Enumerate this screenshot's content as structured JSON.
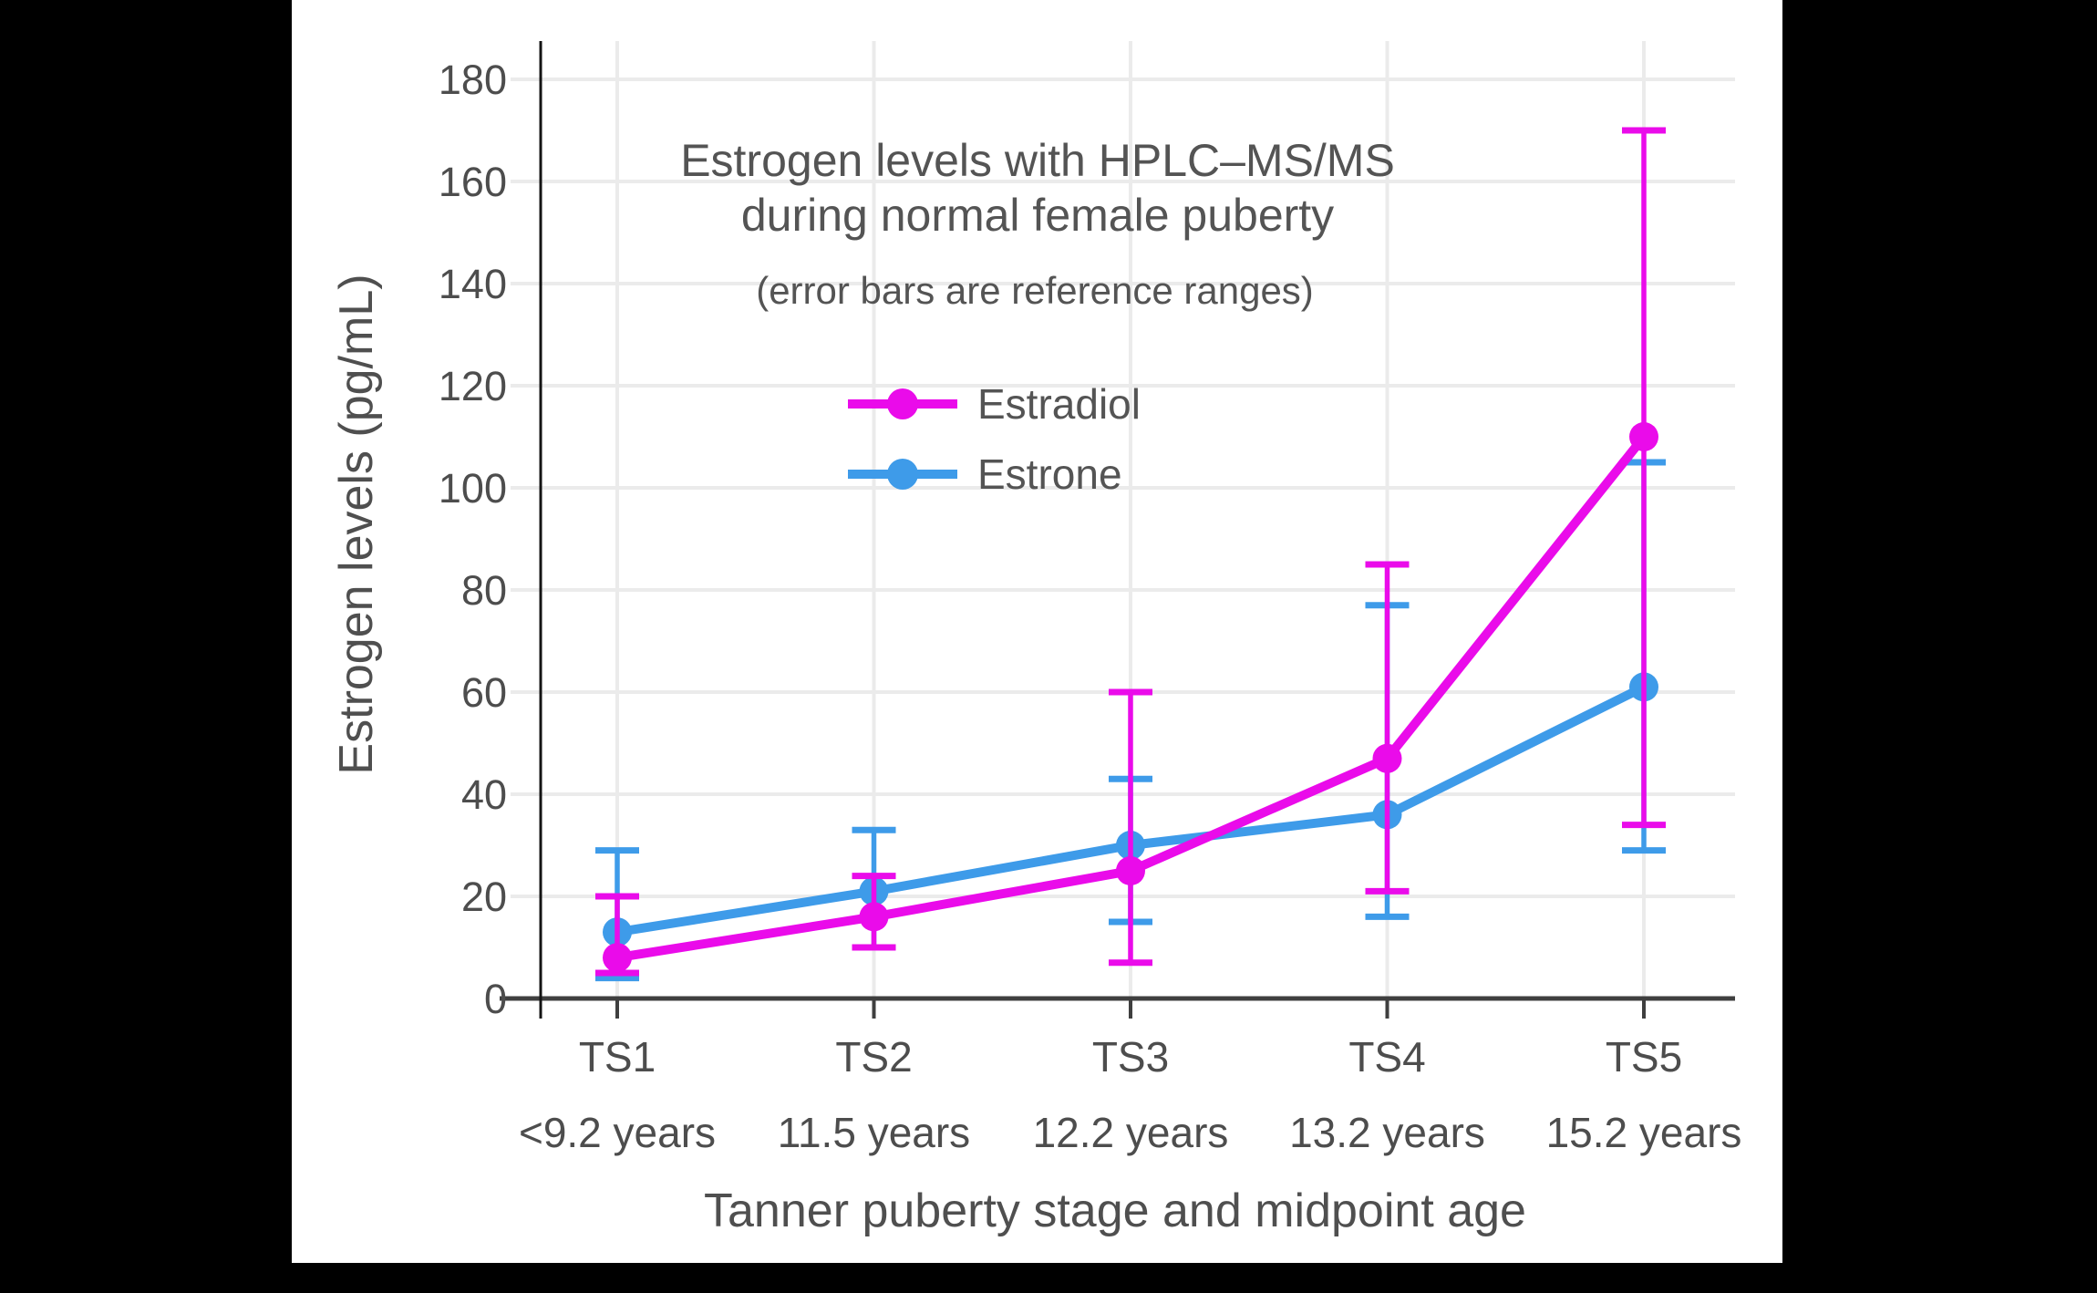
{
  "title_lines": {
    "line1": "Estrogen levels with HPLC–MS/MS",
    "line2": "during normal female puberty"
  },
  "chart_data": {
    "type": "line",
    "title": "Estrogen levels with HPLC–MS/MS during normal female puberty",
    "subtitle": "(error bars are reference ranges)",
    "xlabel": "Tanner puberty stage and midpoint age",
    "ylabel": "Estrogen levels (pg/mL)",
    "categories": [
      "TS1",
      "TS2",
      "TS3",
      "TS4",
      "TS5"
    ],
    "category_ages": [
      "<9.2 years",
      "11.5 years",
      "12.2 years",
      "13.2 years",
      "15.2 years"
    ],
    "yticks": [
      0,
      20,
      40,
      60,
      80,
      100,
      120,
      140,
      160,
      180
    ],
    "ylim": [
      0,
      188
    ],
    "grid": true,
    "legend_position": "inside-top-center",
    "error_bars": "reference ranges",
    "series": [
      {
        "name": "Estradiol",
        "color": "#EA0BEA",
        "values": [
          8,
          16,
          25,
          47,
          110
        ],
        "error_low": [
          5,
          10,
          7,
          21,
          34
        ],
        "error_high": [
          20,
          24,
          60,
          85,
          170
        ]
      },
      {
        "name": "Estrone",
        "color": "#3E9BE9",
        "values": [
          13,
          21,
          30,
          36,
          61
        ],
        "error_low": [
          4,
          10,
          15,
          16,
          29
        ],
        "error_high": [
          29,
          33,
          43,
          77,
          105
        ]
      }
    ],
    "colors": {
      "panel_background": "#ffffff",
      "page_background": "#000000",
      "gridline": "#ebebeb",
      "x_axis_line": "#3f3f3f",
      "y_axis_line": "#141414",
      "text": "#545454"
    }
  }
}
